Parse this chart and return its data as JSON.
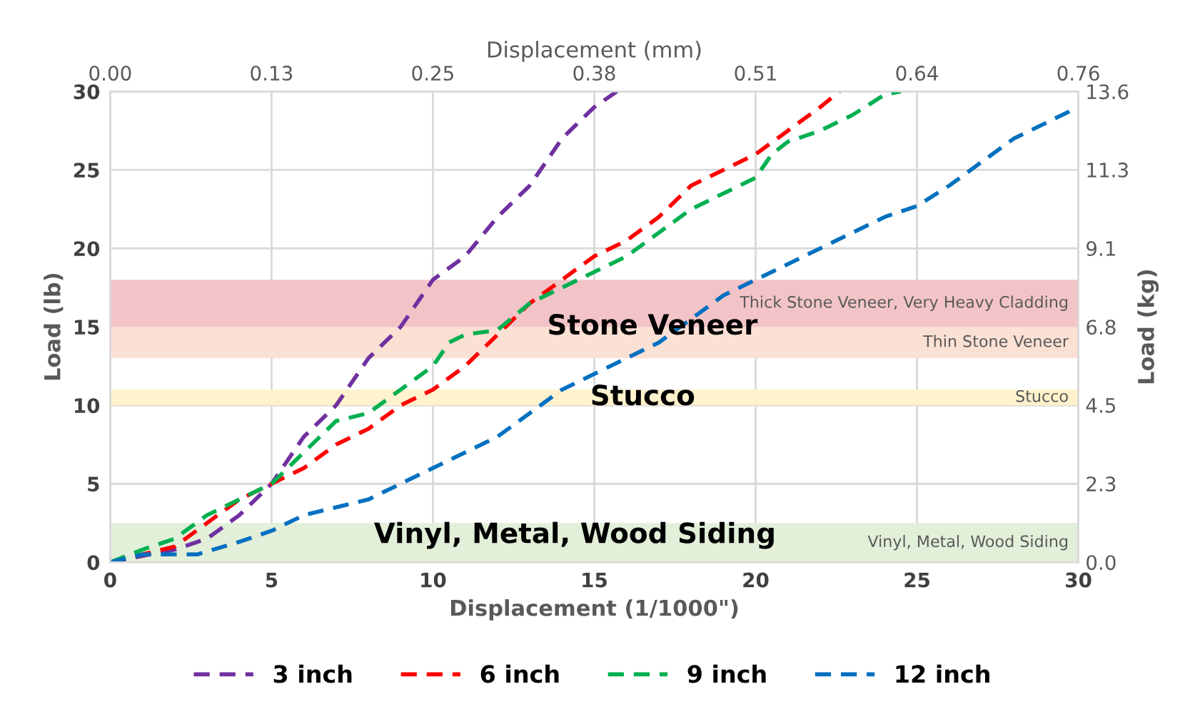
{
  "chart_data": {
    "type": "line",
    "xlabel": "Displacement (1/1000\")",
    "ylabel": "Load (lb)",
    "y2label": "Load (kg)",
    "x2label": "Displacement (mm)",
    "xlim": [
      0,
      30
    ],
    "xticks": [
      0,
      5,
      10,
      15,
      20,
      25,
      30
    ],
    "ylim": [
      0,
      30
    ],
    "yticks": [
      0,
      5,
      10,
      15,
      20,
      25,
      30
    ],
    "x2lim": [
      0,
      0.762
    ],
    "x2ticks": [
      {
        "value": 0,
        "label": "0.00"
      },
      {
        "value": 0.127,
        "label": "0.13"
      },
      {
        "value": 0.254,
        "label": "0.25"
      },
      {
        "value": 0.381,
        "label": "0.38"
      },
      {
        "value": 0.508,
        "label": "0.51"
      },
      {
        "value": 0.635,
        "label": "0.64"
      },
      {
        "value": 0.762,
        "label": "0.76"
      }
    ],
    "y2lim": [
      0,
      13.6
    ],
    "y2ticks": [
      {
        "value": 0,
        "label": "0.0"
      },
      {
        "value": 2.27,
        "label": "2.3"
      },
      {
        "value": 4.54,
        "label": "4.5"
      },
      {
        "value": 6.8,
        "label": "6.8"
      },
      {
        "value": 9.07,
        "label": "9.1"
      },
      {
        "value": 11.34,
        "label": "11.3"
      },
      {
        "value": 13.6,
        "label": "13.6"
      }
    ],
    "grid": true,
    "legend": "bottom",
    "line_style": "dashed",
    "bands": [
      {
        "axis": "y",
        "from": 0,
        "to": 2.5,
        "label": "Vinyl, Metal, Wood Siding",
        "color": "#e2efd9"
      },
      {
        "axis": "y",
        "from": 10,
        "to": 11,
        "label": "Stucco",
        "color": "#fff2cc"
      },
      {
        "axis": "y",
        "from": 13,
        "to": 15,
        "label": "Thin Stone Veneer",
        "color": "#fbe0d4"
      },
      {
        "axis": "y",
        "from": 15,
        "to": 18,
        "label": "Thick Stone Veneer, Very Heavy Cladding",
        "color": "#f2c4c8"
      }
    ],
    "annotations": [
      "Stone Veneer",
      "Stucco",
      "Vinyl, Metal, Wood Siding"
    ],
    "series": [
      {
        "name": "3 inch",
        "color": "#7030a0",
        "x": [
          0,
          2,
          3,
          4,
          5,
          6,
          7,
          8,
          9,
          10,
          11,
          12,
          13,
          14,
          15,
          15.7
        ],
        "values": [
          0,
          0.8,
          1.5,
          3,
          5,
          8,
          10,
          13,
          15,
          18,
          19.5,
          22,
          24,
          27,
          29,
          30
        ]
      },
      {
        "name": "6 inch",
        "color": "#ff0000",
        "x": [
          0,
          1,
          2,
          3,
          4,
          5,
          6,
          7,
          8,
          9,
          10,
          11,
          12,
          13,
          14,
          15,
          16,
          17,
          18,
          19,
          20,
          21,
          22,
          22.6
        ],
        "values": [
          0,
          0.5,
          1,
          2.5,
          4,
          5,
          6,
          7.5,
          8.5,
          10,
          11,
          12.5,
          14.5,
          16.5,
          18,
          19.5,
          20.5,
          22,
          24,
          25,
          26,
          27.5,
          29,
          30
        ]
      },
      {
        "name": "9 inch",
        "color": "#00b050",
        "x": [
          0,
          1,
          2,
          3,
          4,
          5,
          6,
          7,
          8,
          9,
          10,
          10.5,
          11,
          12,
          13,
          14,
          15,
          16,
          17,
          18,
          19,
          20,
          20.5,
          21,
          22,
          23,
          24,
          24.5
        ],
        "values": [
          0,
          0.8,
          1.5,
          3,
          4,
          5,
          7,
          9,
          9.5,
          11,
          12.5,
          14,
          14.5,
          14.8,
          16.5,
          17.5,
          18.5,
          19.5,
          21,
          22.5,
          23.5,
          24.5,
          26,
          26.8,
          27.5,
          28.5,
          29.8,
          30
        ]
      },
      {
        "name": "12 inch",
        "color": "#0070c0",
        "x": [
          0,
          1,
          2.7,
          4,
          5,
          6,
          7,
          8,
          9,
          10,
          11,
          12,
          13,
          14,
          15,
          16,
          17,
          18,
          19,
          20,
          21,
          22,
          23,
          24,
          25,
          26,
          27,
          28,
          29,
          30
        ],
        "values": [
          0,
          0.5,
          0.5,
          1.3,
          2,
          3,
          3.5,
          4,
          5,
          6,
          7,
          8,
          9.5,
          11,
          12,
          13,
          14,
          15.5,
          17,
          18,
          19,
          20,
          21,
          22,
          22.7,
          24,
          25.5,
          27,
          28,
          29
        ]
      }
    ]
  }
}
